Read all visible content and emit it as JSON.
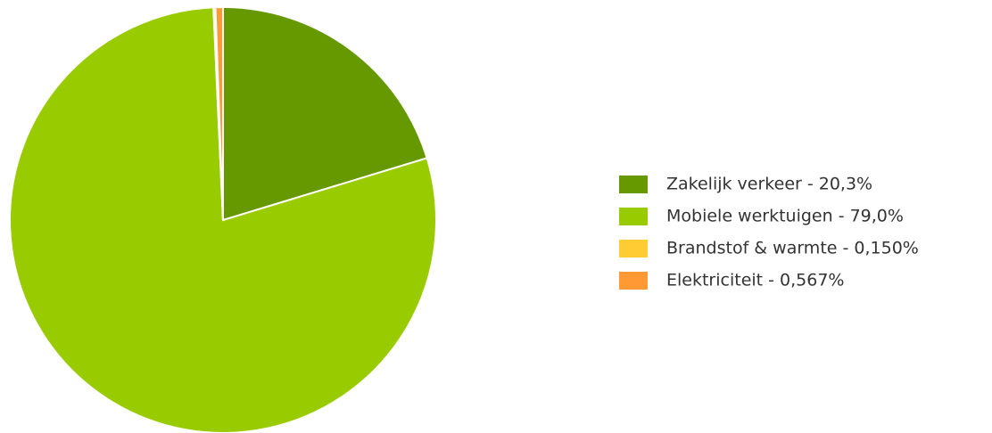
{
  "chart_data": {
    "type": "pie",
    "categories": [
      "Zakelijk verkeer - 20,3%",
      "Mobiele werktuigen - 79,0%",
      "Brandstof & warmte - 0,150%",
      "Elektriciteit - 0,567%"
    ],
    "values": [
      20.3,
      79.0,
      0.15,
      0.567
    ],
    "colors": [
      "#669900",
      "#99cc00",
      "#ffcc33",
      "#ff9933"
    ],
    "legend": "right"
  }
}
